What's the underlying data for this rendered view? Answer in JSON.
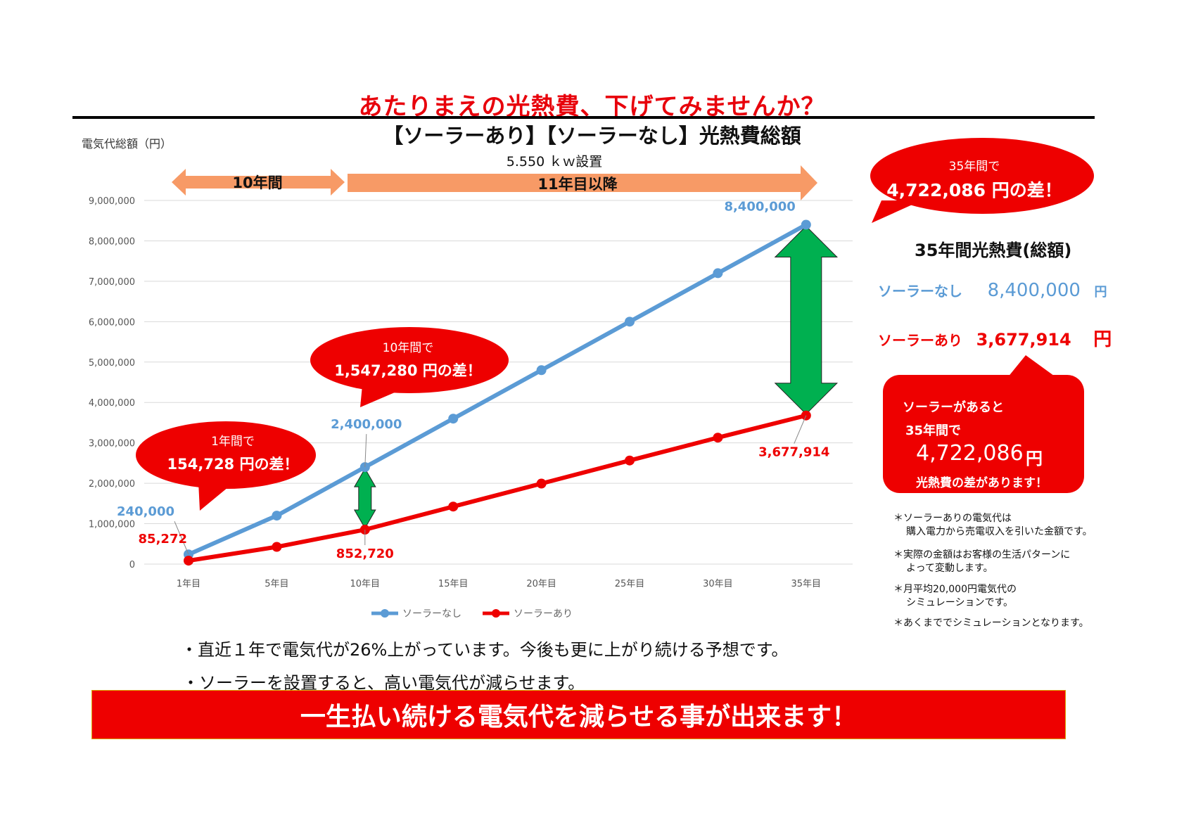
{
  "header": {
    "main_title": "あたりまえの光熱費、下げてみませんか？",
    "sub_title": "【ソーラーあり】【ソーラーなし】光熱費総額",
    "y_label": "電気代総額（円）",
    "install_label": "5.550 ｋｗ設置"
  },
  "periods": [
    {
      "label": "10年間",
      "color": "#f79a66"
    },
    {
      "label": "11年目以降",
      "color": "#f79a66"
    }
  ],
  "chart_data": {
    "type": "line",
    "categories": [
      "1年目",
      "5年目",
      "10年目",
      "15年目",
      "20年目",
      "25年目",
      "30年目",
      "35年目"
    ],
    "series": [
      {
        "name": "ソーラーなし",
        "color": "#5b9bd5",
        "values": [
          240000,
          1200000,
          2400000,
          3600000,
          4800000,
          6000000,
          7200000,
          8400000
        ]
      },
      {
        "name": "ソーラーあり",
        "color": "#ee0000",
        "values": [
          85272,
          426360,
          852720,
          1424000,
          1993000,
          2564000,
          3130000,
          3677914
        ]
      }
    ],
    "ylim": [
      0,
      9000000
    ],
    "yticks": [
      "0",
      "1,000,000",
      "2,000,000",
      "3,000,000",
      "4,000,000",
      "5,000,000",
      "6,000,000",
      "7,000,000",
      "8,000,000",
      "9,000,000"
    ],
    "grid": true,
    "legend_position": "bottom",
    "data_labels": [
      {
        "series": 0,
        "index": 0,
        "text": "240,000"
      },
      {
        "series": 1,
        "index": 0,
        "text": "85,272"
      },
      {
        "series": 0,
        "index": 2,
        "text": "2,400,000"
      },
      {
        "series": 1,
        "index": 2,
        "text": "852,720"
      },
      {
        "series": 0,
        "index": 7,
        "text": "8,400,000"
      },
      {
        "series": 1,
        "index": 7,
        "text": "3,677,914"
      }
    ]
  },
  "bubbles": [
    {
      "line1": "1年間で",
      "line2": "154,728 円の差！"
    },
    {
      "line1": "10年間で",
      "line2": "1,547,280 円の差！"
    },
    {
      "line1": "35年間で",
      "line2": "4,722,086 円の差！"
    }
  ],
  "summary": {
    "title": "35年間光熱費(総額)",
    "rows": [
      {
        "label": "ソーラーなし",
        "value": "8,400,000",
        "unit": "円",
        "color": "#5b9bd5"
      },
      {
        "label": "ソーラーあり",
        "value": "3,677,914",
        "unit": "円",
        "color": "#ee0000"
      }
    ]
  },
  "difference_box": {
    "line1": "ソーラーがあると",
    "line2": "35年間で",
    "amount": "4,722,086",
    "unit": "円",
    "line4": "光熱費の差があります！"
  },
  "notes": [
    {
      "line1": "＊ソーラーありの電気代は",
      "line2": "購入電力から売電収入を引いた金額です。"
    },
    {
      "line1": "＊実際の金額はお客様の生活パターンに",
      "line2": "よって変動します。"
    },
    {
      "line1": "＊月平均20,000円電気代の",
      "line2": "シミュレーションです。"
    },
    {
      "line1": "＊あくまででシミュレーションとなります。",
      "line2": ""
    }
  ],
  "bullets": [
    "・直近１年で電気代が26%上がっています。今後も更に上がり続ける予想です。",
    "・ソーラーを設置すると、高い電気代が減らせます。"
  ],
  "banner": {
    "text": "一生払い続ける電気代を減らせる事が出来ます！"
  }
}
